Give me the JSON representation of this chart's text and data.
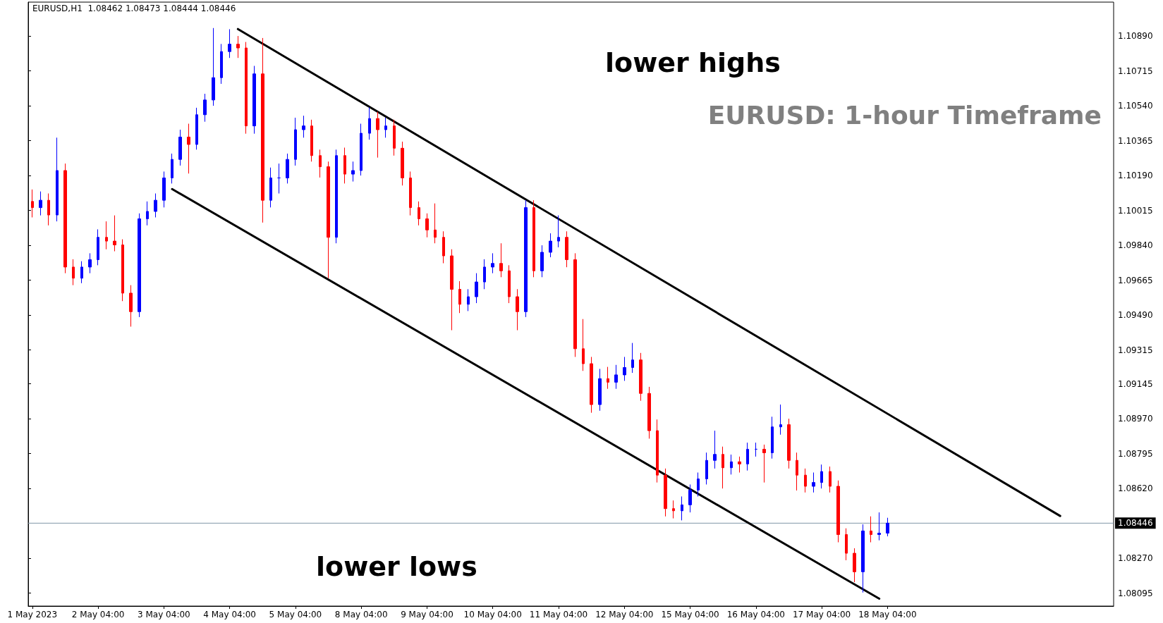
{
  "chart_data": {
    "type": "candlestick",
    "title": "EURUSD: 1-hour Timeframe",
    "annotations": [
      "EURUSD,H1  1.08462 1.08473 1.08444 1.08446",
      "lower highs",
      "lower lows"
    ],
    "categories": [
      "1 May 2023",
      null,
      null,
      null,
      null,
      null,
      null,
      null,
      "2 May 04:00",
      null,
      null,
      null,
      null,
      null,
      null,
      null,
      "3 May 04:00",
      null,
      null,
      null,
      null,
      null,
      null,
      null,
      "4 May 04:00",
      null,
      null,
      null,
      null,
      null,
      null,
      null,
      "5 May 04:00",
      null,
      null,
      null,
      null,
      null,
      null,
      null,
      "8 May 04:00",
      null,
      null,
      null,
      null,
      null,
      null,
      null,
      "9 May 04:00",
      null,
      null,
      null,
      null,
      null,
      null,
      null,
      "10 May 04:00",
      null,
      null,
      null,
      null,
      null,
      null,
      null,
      "11 May 04:00",
      null,
      null,
      null,
      null,
      null,
      null,
      null,
      "12 May 04:00",
      null,
      null,
      null,
      null,
      null,
      null,
      null,
      "15 May 04:00",
      null,
      null,
      null,
      null,
      null,
      null,
      null,
      "16 May 04:00",
      null,
      null,
      null,
      null,
      null,
      null,
      null,
      "17 May 04:00",
      null,
      null,
      null,
      null,
      null,
      null,
      null,
      "18 May 04:00",
      null,
      null,
      null,
      null,
      null,
      null,
      null,
      null,
      null,
      null,
      null,
      null,
      null,
      null,
      null,
      null,
      null,
      null,
      null,
      null,
      null,
      null,
      null,
      null,
      null,
      null,
      null
    ],
    "ohlc": [
      [
        1.1006,
        1.1012,
        1.0998,
        1.10029
      ],
      [
        1.10029,
        1.1011,
        1.0999,
        1.10066
      ],
      [
        1.10066,
        1.101,
        1.0994,
        1.09992
      ],
      [
        1.09992,
        1.1038,
        1.0996,
        1.10215
      ],
      [
        1.10215,
        1.1025,
        1.097,
        1.09731
      ],
      [
        1.09731,
        1.0977,
        1.0964,
        1.09675
      ],
      [
        1.09675,
        1.0976,
        1.0965,
        1.09731
      ],
      [
        1.09731,
        1.098,
        1.097,
        1.09768
      ],
      [
        1.09768,
        1.0992,
        1.0974,
        1.0988
      ],
      [
        1.0988,
        1.0996,
        1.0982,
        1.09861
      ],
      [
        1.09861,
        1.0999,
        1.0981,
        1.09842
      ],
      [
        1.09842,
        1.0987,
        1.0956,
        1.096
      ],
      [
        1.096,
        1.0964,
        1.09432,
        1.09507
      ],
      [
        1.09507,
        1.1,
        1.0948,
        1.09973
      ],
      [
        1.09973,
        1.1006,
        1.0994,
        1.1001
      ],
      [
        1.1001,
        1.101,
        1.0998,
        1.10066
      ],
      [
        1.10066,
        1.1021,
        1.1003,
        1.10178
      ],
      [
        1.10178,
        1.103,
        1.1015,
        1.10271
      ],
      [
        1.10271,
        1.1042,
        1.1024,
        1.10383
      ],
      [
        1.10383,
        1.1045,
        1.102,
        1.10346
      ],
      [
        1.10346,
        1.1053,
        1.1032,
        1.10495
      ],
      [
        1.10495,
        1.106,
        1.1046,
        1.10569
      ],
      [
        1.10569,
        1.1093,
        1.1054,
        1.10681
      ],
      [
        1.10681,
        1.1085,
        1.1065,
        1.10812
      ],
      [
        1.10812,
        1.10924,
        1.1078,
        1.10849
      ],
      [
        1.10849,
        1.1089,
        1.1078,
        1.1083
      ],
      [
        1.1083,
        1.1086,
        1.104,
        1.10439
      ],
      [
        1.10439,
        1.1074,
        1.104,
        1.107
      ],
      [
        1.107,
        1.1088,
        1.09954,
        1.10066
      ],
      [
        1.10066,
        1.1023,
        1.1003,
        1.10178
      ],
      [
        1.10178,
        1.1025,
        1.101,
        1.10178
      ],
      [
        1.10178,
        1.103,
        1.1015,
        1.10271
      ],
      [
        1.10271,
        1.1048,
        1.1024,
        1.1042
      ],
      [
        1.1042,
        1.1049,
        1.1038,
        1.10439
      ],
      [
        1.10439,
        1.1047,
        1.1026,
        1.1029
      ],
      [
        1.1029,
        1.1032,
        1.1018,
        1.10234
      ],
      [
        1.10234,
        1.1026,
        1.09675,
        1.0988
      ],
      [
        1.0988,
        1.1032,
        1.0985,
        1.1029
      ],
      [
        1.1029,
        1.1033,
        1.1015,
        1.10197
      ],
      [
        1.10197,
        1.1026,
        1.1016,
        1.10215
      ],
      [
        1.10215,
        1.1045,
        1.1019,
        1.10402
      ],
      [
        1.10402,
        1.10532,
        1.1037,
        1.10476
      ],
      [
        1.10476,
        1.1051,
        1.1028,
        1.1042
      ],
      [
        1.1042,
        1.1048,
        1.1038,
        1.10439
      ],
      [
        1.10439,
        1.1047,
        1.1029,
        1.10327
      ],
      [
        1.10327,
        1.1036,
        1.1014,
        1.10178
      ],
      [
        1.10178,
        1.1021,
        1.0999,
        1.10029
      ],
      [
        1.10029,
        1.1006,
        1.0994,
        1.09973
      ],
      [
        1.09973,
        1.1,
        1.0988,
        1.09917
      ],
      [
        1.09917,
        1.1005,
        1.0985,
        1.0988
      ],
      [
        1.0988,
        1.0991,
        1.0975,
        1.09787
      ],
      [
        1.09787,
        1.0982,
        1.09414,
        1.09619
      ],
      [
        1.09619,
        1.0966,
        1.095,
        1.09544
      ],
      [
        1.09544,
        1.0962,
        1.0951,
        1.09582
      ],
      [
        1.09582,
        1.097,
        1.0955,
        1.09656
      ],
      [
        1.09656,
        1.0977,
        1.0962,
        1.09731
      ],
      [
        1.09731,
        1.098,
        1.097,
        1.09749
      ],
      [
        1.09749,
        1.0985,
        1.0968,
        1.09712
      ],
      [
        1.09712,
        1.0974,
        1.0955,
        1.09582
      ],
      [
        1.09582,
        1.0962,
        1.09414,
        1.09507
      ],
      [
        1.09507,
        1.10066,
        1.0948,
        1.10029
      ],
      [
        1.10029,
        1.10066,
        1.0968,
        1.09712
      ],
      [
        1.09712,
        1.0984,
        1.0968,
        1.09805
      ],
      [
        1.09805,
        1.099,
        1.0978,
        1.09861
      ],
      [
        1.09861,
        1.0999,
        1.0983,
        1.0988
      ],
      [
        1.0988,
        1.0991,
        1.0973,
        1.09768
      ],
      [
        1.09768,
        1.098,
        1.0928,
        1.09321
      ],
      [
        1.09321,
        1.0947,
        1.0921,
        1.09246
      ],
      [
        1.09246,
        1.0928,
        1.09,
        1.09041
      ],
      [
        1.09041,
        1.0922,
        1.0901,
        1.09171
      ],
      [
        1.09171,
        1.0923,
        1.0912,
        1.09153
      ],
      [
        1.09153,
        1.0924,
        1.0912,
        1.0919
      ],
      [
        1.0919,
        1.0928,
        1.0916,
        1.09227
      ],
      [
        1.09227,
        1.0935,
        1.092,
        1.09265
      ],
      [
        1.09265,
        1.093,
        1.0906,
        1.09097
      ],
      [
        1.09097,
        1.0913,
        1.0887,
        1.0891
      ],
      [
        1.0891,
        1.08966,
        1.0865,
        1.08687
      ],
      [
        1.08687,
        1.0872,
        1.0848,
        1.08519
      ],
      [
        1.08519,
        1.0856,
        1.0847,
        1.08508
      ],
      [
        1.08508,
        1.0858,
        1.0846,
        1.08538
      ],
      [
        1.08538,
        1.0864,
        1.085,
        1.08612
      ],
      [
        1.08612,
        1.087,
        1.0858,
        1.08668
      ],
      [
        1.08668,
        1.088,
        1.0864,
        1.08761
      ],
      [
        1.08761,
        1.0891,
        1.0872,
        1.08791
      ],
      [
        1.08791,
        1.0883,
        1.0862,
        1.08724
      ],
      [
        1.08724,
        1.0879,
        1.0869,
        1.08754
      ],
      [
        1.08754,
        1.0878,
        1.087,
        1.08743
      ],
      [
        1.08743,
        1.0885,
        1.0871,
        1.08817
      ],
      [
        1.08817,
        1.0885,
        1.0878,
        1.08817
      ],
      [
        1.08817,
        1.0884,
        1.0865,
        1.08799
      ],
      [
        1.08799,
        1.0898,
        1.0877,
        1.08929
      ],
      [
        1.08929,
        1.09041,
        1.0889,
        1.0894
      ],
      [
        1.0894,
        1.0897,
        1.0872,
        1.08761
      ],
      [
        1.08761,
        1.088,
        1.0861,
        1.08687
      ],
      [
        1.08687,
        1.0872,
        1.086,
        1.08631
      ],
      [
        1.08631,
        1.087,
        1.086,
        1.0865
      ],
      [
        1.0865,
        1.0874,
        1.0862,
        1.08705
      ],
      [
        1.08705,
        1.0873,
        1.086,
        1.08631
      ],
      [
        1.08631,
        1.0866,
        1.0835,
        1.08389
      ],
      [
        1.08389,
        1.0842,
        1.0826,
        1.08295
      ],
      [
        1.08295,
        1.0832,
        1.0815,
        1.08202
      ],
      [
        1.08202,
        1.0844,
        1.08098,
        1.08407
      ],
      [
        1.08407,
        1.0848,
        1.0835,
        1.08389
      ],
      [
        1.08389,
        1.085,
        1.0836,
        1.08396
      ],
      [
        1.08396,
        1.08473,
        1.0838,
        1.08446
      ],
      null,
      null,
      null,
      null,
      null,
      null,
      null,
      null,
      null,
      null,
      null,
      null,
      null,
      null,
      null,
      null,
      null,
      null,
      null,
      null,
      null,
      null,
      null,
      null,
      null,
      null,
      null
    ],
    "series": [
      {
        "type": "line",
        "color": "#000000",
        "values": [
          null,
          null,
          null,
          null,
          null,
          null,
          null,
          null,
          null,
          null,
          null,
          null,
          null,
          null,
          null,
          null,
          null,
          null,
          null,
          null,
          null,
          null,
          null,
          null,
          null,
          1.10925,
          null,
          null,
          null,
          null,
          null,
          null,
          null,
          null,
          null,
          null,
          null,
          null,
          null,
          null,
          null,
          null,
          null,
          null,
          null,
          null,
          null,
          null,
          null,
          null,
          null,
          null,
          null,
          null,
          null,
          null,
          null,
          null,
          null,
          null,
          null,
          null,
          null,
          null,
          null,
          null,
          null,
          null,
          null,
          null,
          null,
          null,
          null,
          null,
          null,
          null,
          null,
          null,
          null,
          null,
          null,
          null,
          null,
          null,
          null,
          null,
          null,
          null,
          null,
          null,
          null,
          null,
          null,
          null,
          null,
          null,
          null,
          null,
          null,
          null,
          null,
          null,
          null,
          null,
          null,
          null,
          null,
          null,
          null,
          null,
          null,
          null,
          null,
          null,
          null,
          null,
          null,
          null,
          null,
          null,
          null,
          null,
          null,
          null,
          null,
          1.08482,
          null,
          null,
          null,
          null,
          null,
          null
        ]
      },
      {
        "type": "line",
        "color": "#000000",
        "values": [
          null,
          null,
          null,
          null,
          null,
          null,
          null,
          null,
          null,
          null,
          null,
          null,
          null,
          null,
          null,
          null,
          null,
          1.10122,
          null,
          null,
          null,
          null,
          null,
          null,
          null,
          null,
          null,
          null,
          null,
          null,
          null,
          null,
          null,
          null,
          null,
          null,
          null,
          null,
          null,
          null,
          null,
          null,
          null,
          null,
          null,
          null,
          null,
          null,
          null,
          null,
          null,
          null,
          null,
          null,
          null,
          null,
          null,
          null,
          null,
          null,
          null,
          null,
          null,
          null,
          null,
          null,
          null,
          null,
          null,
          null,
          null,
          null,
          null,
          null,
          null,
          null,
          null,
          null,
          null,
          null,
          null,
          null,
          null,
          null,
          null,
          null,
          null,
          null,
          null,
          null,
          null,
          null,
          null,
          null,
          null,
          null,
          null,
          null,
          null,
          null,
          null,
          null,
          null,
          1.08067,
          null,
          null,
          null,
          null,
          null,
          null,
          null,
          null,
          null,
          null,
          null,
          null,
          null,
          null,
          null,
          null,
          null,
          null,
          null,
          null,
          null,
          null,
          null,
          null,
          null,
          null,
          null,
          null
        ]
      }
    ],
    "ylim": [
      1.0803,
      1.1106
    ],
    "yticks": [
      {
        "value": 1.08095,
        "label": "1.08095"
      },
      {
        "value": 1.0827,
        "label": "1.08270"
      },
      {
        "value": 1.0862,
        "label": "1.08620"
      },
      {
        "value": 1.08795,
        "label": "1.08795"
      },
      {
        "value": 1.0897,
        "label": "1.08970"
      },
      {
        "value": 1.09145,
        "label": "1.09145"
      },
      {
        "value": 1.09315,
        "label": "1.09315"
      },
      {
        "value": 1.0949,
        "label": "1.09490"
      },
      {
        "value": 1.09665,
        "label": "1.09665"
      },
      {
        "value": 1.0984,
        "label": "1.09840"
      },
      {
        "value": 1.10015,
        "label": "1.10015"
      },
      {
        "value": 1.1019,
        "label": "1.10190"
      },
      {
        "value": 1.10365,
        "label": "1.10365"
      },
      {
        "value": 1.1054,
        "label": "1.10540"
      },
      {
        "value": 1.10715,
        "label": "1.10715"
      },
      {
        "value": 1.1089,
        "label": "1.10890"
      }
    ],
    "ref_lines": [
      {
        "axis": "y",
        "value": 1.08446,
        "label": "1.08446",
        "color": "#8096a8"
      }
    ]
  }
}
